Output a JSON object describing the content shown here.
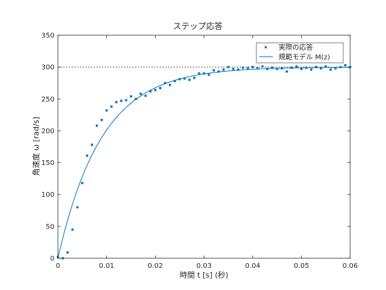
{
  "chart_data": {
    "type": "scatter",
    "title": "ステップ応答",
    "xlabel": "時間 t [s] (秒)",
    "ylabel": "角速度 ω [rad/s]",
    "xlim": [
      0,
      0.06
    ],
    "ylim": [
      0,
      350
    ],
    "xticks": [
      0,
      0.01,
      0.02,
      0.03,
      0.04,
      0.05,
      0.06
    ],
    "xtick_labels": [
      "0",
      "0.01",
      "0.02",
      "0.03",
      "0.04",
      "0.05",
      "0.06"
    ],
    "yticks": [
      0,
      50,
      100,
      150,
      200,
      250,
      300,
      350
    ],
    "ytick_labels": [
      "0",
      "50",
      "100",
      "150",
      "200",
      "250",
      "300",
      "350"
    ],
    "grid": false,
    "legend_position": "top-right",
    "reference_line": {
      "y": 300,
      "style": "dotted"
    },
    "series": [
      {
        "name": "実際の応答",
        "kind": "scatter",
        "color": "#0072BD",
        "x": [
          0,
          0.001,
          0.002,
          0.003,
          0.004,
          0.005,
          0.006,
          0.007,
          0.008,
          0.009,
          0.01,
          0.011,
          0.012,
          0.013,
          0.014,
          0.015,
          0.016,
          0.017,
          0.018,
          0.019,
          0.02,
          0.021,
          0.022,
          0.023,
          0.024,
          0.025,
          0.026,
          0.027,
          0.028,
          0.029,
          0.03,
          0.031,
          0.032,
          0.033,
          0.034,
          0.035,
          0.036,
          0.037,
          0.038,
          0.039,
          0.04,
          0.041,
          0.042,
          0.043,
          0.044,
          0.045,
          0.046,
          0.047,
          0.048,
          0.049,
          0.05,
          0.051,
          0.052,
          0.053,
          0.054,
          0.055,
          0.056,
          0.057,
          0.058,
          0.059,
          0.06
        ],
        "values": [
          2,
          0,
          9,
          45,
          80,
          118,
          161,
          178,
          208,
          217,
          232,
          238,
          245,
          247,
          248,
          254,
          250,
          258,
          255,
          262,
          264,
          267,
          275,
          272,
          278,
          281,
          282,
          280,
          283,
          290,
          290,
          288,
          295,
          293,
          296,
          300,
          297,
          296,
          299,
          298,
          300,
          298,
          301,
          297,
          299,
          297,
          298,
          293,
          299,
          301,
          297,
          299,
          296,
          300,
          298,
          301,
          296,
          298,
          300,
          303,
          300
        ]
      },
      {
        "name": "規範モデル M(z)",
        "kind": "line",
        "color": "#0072BD",
        "model": {
          "final_value": 300,
          "time_constant": 0.009
        }
      }
    ]
  }
}
